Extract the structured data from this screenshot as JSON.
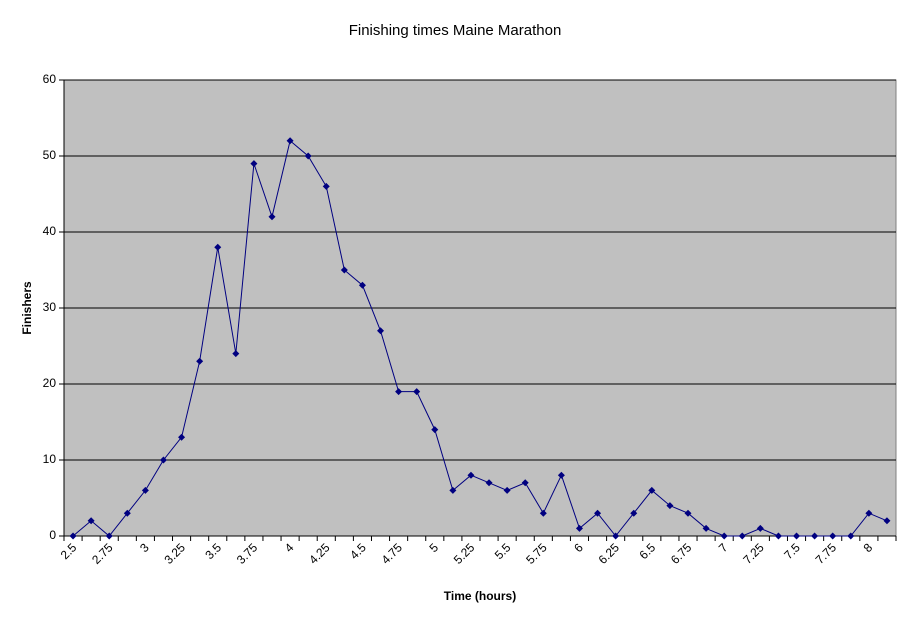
{
  "chart_data": {
    "type": "line",
    "title": "Finishing times Maine Marathon",
    "x_label": "Time (hours)",
    "y_label": "Finishers",
    "categories": [
      "2.5",
      null,
      "2.75",
      null,
      "3",
      null,
      "3.25",
      null,
      "3.5",
      null,
      "3.75",
      null,
      "4",
      null,
      "4.25",
      null,
      "4.5",
      null,
      "4.75",
      null,
      "5",
      null,
      "5.25",
      null,
      "5.5",
      null,
      "5.75",
      null,
      "6",
      null,
      "6.25",
      null,
      "6.5",
      null,
      "6.75",
      null,
      "7",
      null,
      "7.25",
      null,
      "7.5",
      null,
      "7.75",
      null,
      "8",
      null
    ],
    "series": [
      {
        "name": "Finishers",
        "color": "#000080",
        "values": [
          0,
          2,
          0,
          3,
          6,
          10,
          13,
          23,
          38,
          24,
          49,
          42,
          52,
          50,
          46,
          35,
          33,
          27,
          19,
          19,
          14,
          6,
          8,
          7,
          6,
          7,
          3,
          8,
          1,
          3,
          0,
          3,
          6,
          4,
          3,
          1,
          0,
          0,
          1,
          0,
          0,
          0,
          0,
          0,
          3,
          2
        ]
      }
    ],
    "ylim": [
      0,
      60
    ],
    "yticks": [
      0,
      10,
      20,
      30,
      40,
      50,
      60
    ],
    "grid": true,
    "background": "#c0c0c0"
  }
}
